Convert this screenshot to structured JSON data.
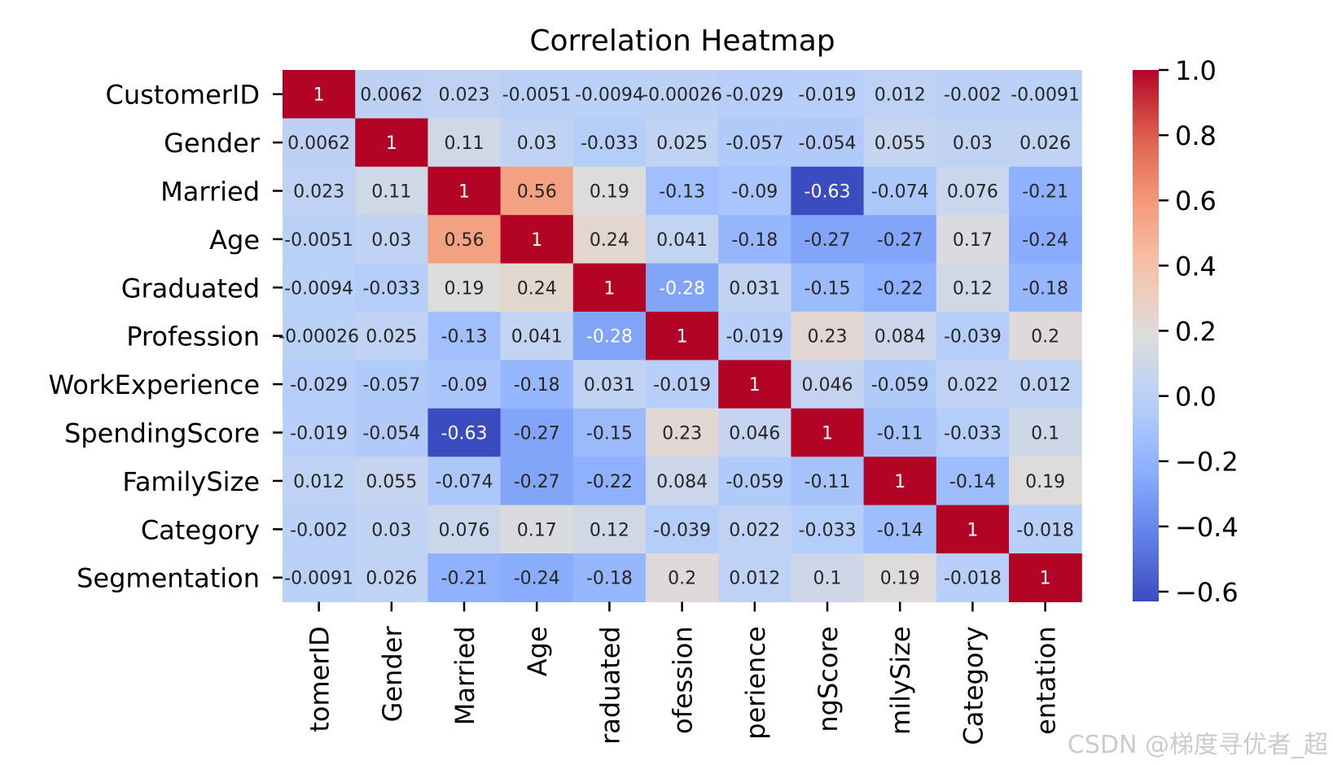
{
  "chart_data": {
    "type": "heatmap",
    "title": "Correlation Heatmap",
    "row_labels": [
      "CustomerID",
      "Gender",
      "Married",
      "Age",
      "Graduated",
      "Profession",
      "WorkExperience",
      "SpendingScore",
      "FamilySize",
      "Category",
      "Segmentation"
    ],
    "col_labels_visible": [
      "tomerID",
      "Gender",
      "Married",
      "Age",
      "raduated",
      "ofession",
      "perience",
      "ngScore",
      "milySize",
      "Category",
      "entation"
    ],
    "values": [
      [
        1,
        0.0062,
        0.023,
        -0.0051,
        -0.0094,
        -0.00026,
        -0.029,
        -0.019,
        0.012,
        -0.002,
        -0.0091
      ],
      [
        0.0062,
        1,
        0.11,
        0.03,
        -0.033,
        0.025,
        -0.057,
        -0.054,
        0.055,
        0.03,
        0.026
      ],
      [
        0.023,
        0.11,
        1,
        0.56,
        0.19,
        -0.13,
        -0.09,
        -0.63,
        -0.074,
        0.076,
        -0.21
      ],
      [
        -0.0051,
        0.03,
        0.56,
        1,
        0.24,
        0.041,
        -0.18,
        -0.27,
        -0.27,
        0.17,
        -0.24
      ],
      [
        -0.0094,
        -0.033,
        0.19,
        0.24,
        1,
        -0.28,
        0.031,
        -0.15,
        -0.22,
        0.12,
        -0.18
      ],
      [
        -0.00026,
        0.025,
        -0.13,
        0.041,
        -0.28,
        1,
        -0.019,
        0.23,
        0.084,
        -0.039,
        0.2
      ],
      [
        -0.029,
        -0.057,
        -0.09,
        -0.18,
        0.031,
        -0.019,
        1,
        0.046,
        -0.059,
        0.022,
        0.012
      ],
      [
        -0.019,
        -0.054,
        -0.63,
        -0.27,
        -0.15,
        0.23,
        0.046,
        1,
        -0.11,
        -0.033,
        0.1
      ],
      [
        0.012,
        0.055,
        -0.074,
        -0.27,
        -0.22,
        0.084,
        -0.059,
        -0.11,
        1,
        -0.14,
        0.19
      ],
      [
        -0.002,
        0.03,
        0.076,
        0.17,
        0.12,
        -0.039,
        0.022,
        -0.033,
        -0.14,
        1,
        -0.018
      ],
      [
        -0.0091,
        0.026,
        -0.21,
        -0.24,
        -0.18,
        0.2,
        0.012,
        0.1,
        0.19,
        -0.018,
        1
      ]
    ],
    "vmin": -0.63,
    "vmax": 1.0,
    "colormap": "coolwarm",
    "colorbar_ticks": [
      "1.0",
      "0.8",
      "0.6",
      "0.4",
      "0.2",
      "0.0",
      "−0.2",
      "−0.4",
      "−0.6"
    ],
    "colorbar_tick_values": [
      1.0,
      0.8,
      0.6,
      0.4,
      0.2,
      0.0,
      -0.2,
      -0.4,
      -0.6
    ],
    "annotations": true
  },
  "watermark": "CSDN @梯度寻优者_超"
}
